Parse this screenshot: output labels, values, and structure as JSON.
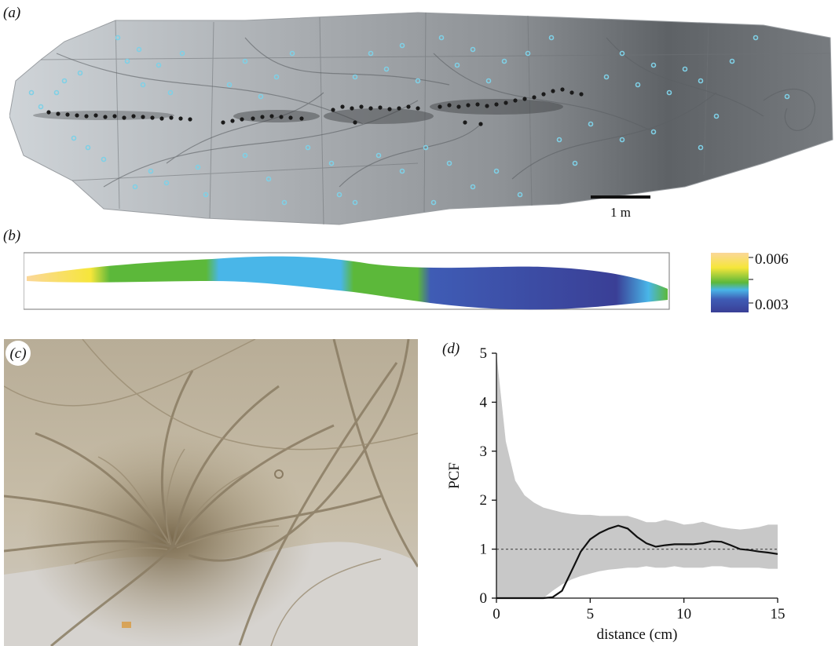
{
  "figure": {
    "labels": {
      "a": "(a)",
      "b": "(b)",
      "c": "(c)",
      "d": "(d)"
    },
    "scale_bar": "1 m"
  },
  "colorbar": {
    "max_label": "0.006",
    "min_label": "0.003",
    "colors": [
      "#fbd79a",
      "#f6e63a",
      "#5cb83a",
      "#49b6e8",
      "#3f5cb5",
      "#3a3f96"
    ]
  },
  "chart_data": {
    "type": "line",
    "xlabel": "distance (cm)",
    "ylabel": "PCF",
    "xlim": [
      0,
      15
    ],
    "ylim": [
      0,
      5
    ],
    "xticks": [
      0,
      5,
      10,
      15
    ],
    "yticks": [
      0,
      1,
      2,
      3,
      4,
      5
    ],
    "reference_line": 1,
    "x": [
      0,
      0.5,
      1,
      1.5,
      2,
      2.5,
      3,
      3.5,
      4,
      4.5,
      5,
      5.5,
      6,
      6.5,
      7,
      7.5,
      8,
      8.5,
      9,
      9.5,
      10,
      10.5,
      11,
      11.5,
      12,
      12.5,
      13,
      13.5,
      14,
      14.5,
      15
    ],
    "series": [
      {
        "values": [
          0,
          0,
          0,
          0,
          0,
          0,
          0.02,
          0.15,
          0.55,
          0.95,
          1.2,
          1.33,
          1.42,
          1.48,
          1.42,
          1.25,
          1.12,
          1.05,
          1.08,
          1.1,
          1.1,
          1.1,
          1.12,
          1.16,
          1.15,
          1.08,
          1.0,
          0.98,
          0.95,
          0.93,
          0.9
        ]
      }
    ],
    "envelope_upper": [
      5,
      3.2,
      2.4,
      2.1,
      1.95,
      1.85,
      1.8,
      1.75,
      1.72,
      1.7,
      1.7,
      1.68,
      1.68,
      1.68,
      1.68,
      1.62,
      1.55,
      1.55,
      1.6,
      1.56,
      1.5,
      1.52,
      1.56,
      1.5,
      1.45,
      1.42,
      1.4,
      1.42,
      1.45,
      1.5,
      1.5
    ],
    "envelope_lower": [
      0,
      0,
      0,
      0,
      0,
      0,
      0.15,
      0.28,
      0.38,
      0.45,
      0.5,
      0.55,
      0.58,
      0.6,
      0.62,
      0.62,
      0.65,
      0.62,
      0.62,
      0.65,
      0.62,
      0.62,
      0.62,
      0.65,
      0.65,
      0.62,
      0.62,
      0.62,
      0.62,
      0.6,
      0.6
    ],
    "envelope_color": "#c8c8c8",
    "line_color": "#111111"
  }
}
